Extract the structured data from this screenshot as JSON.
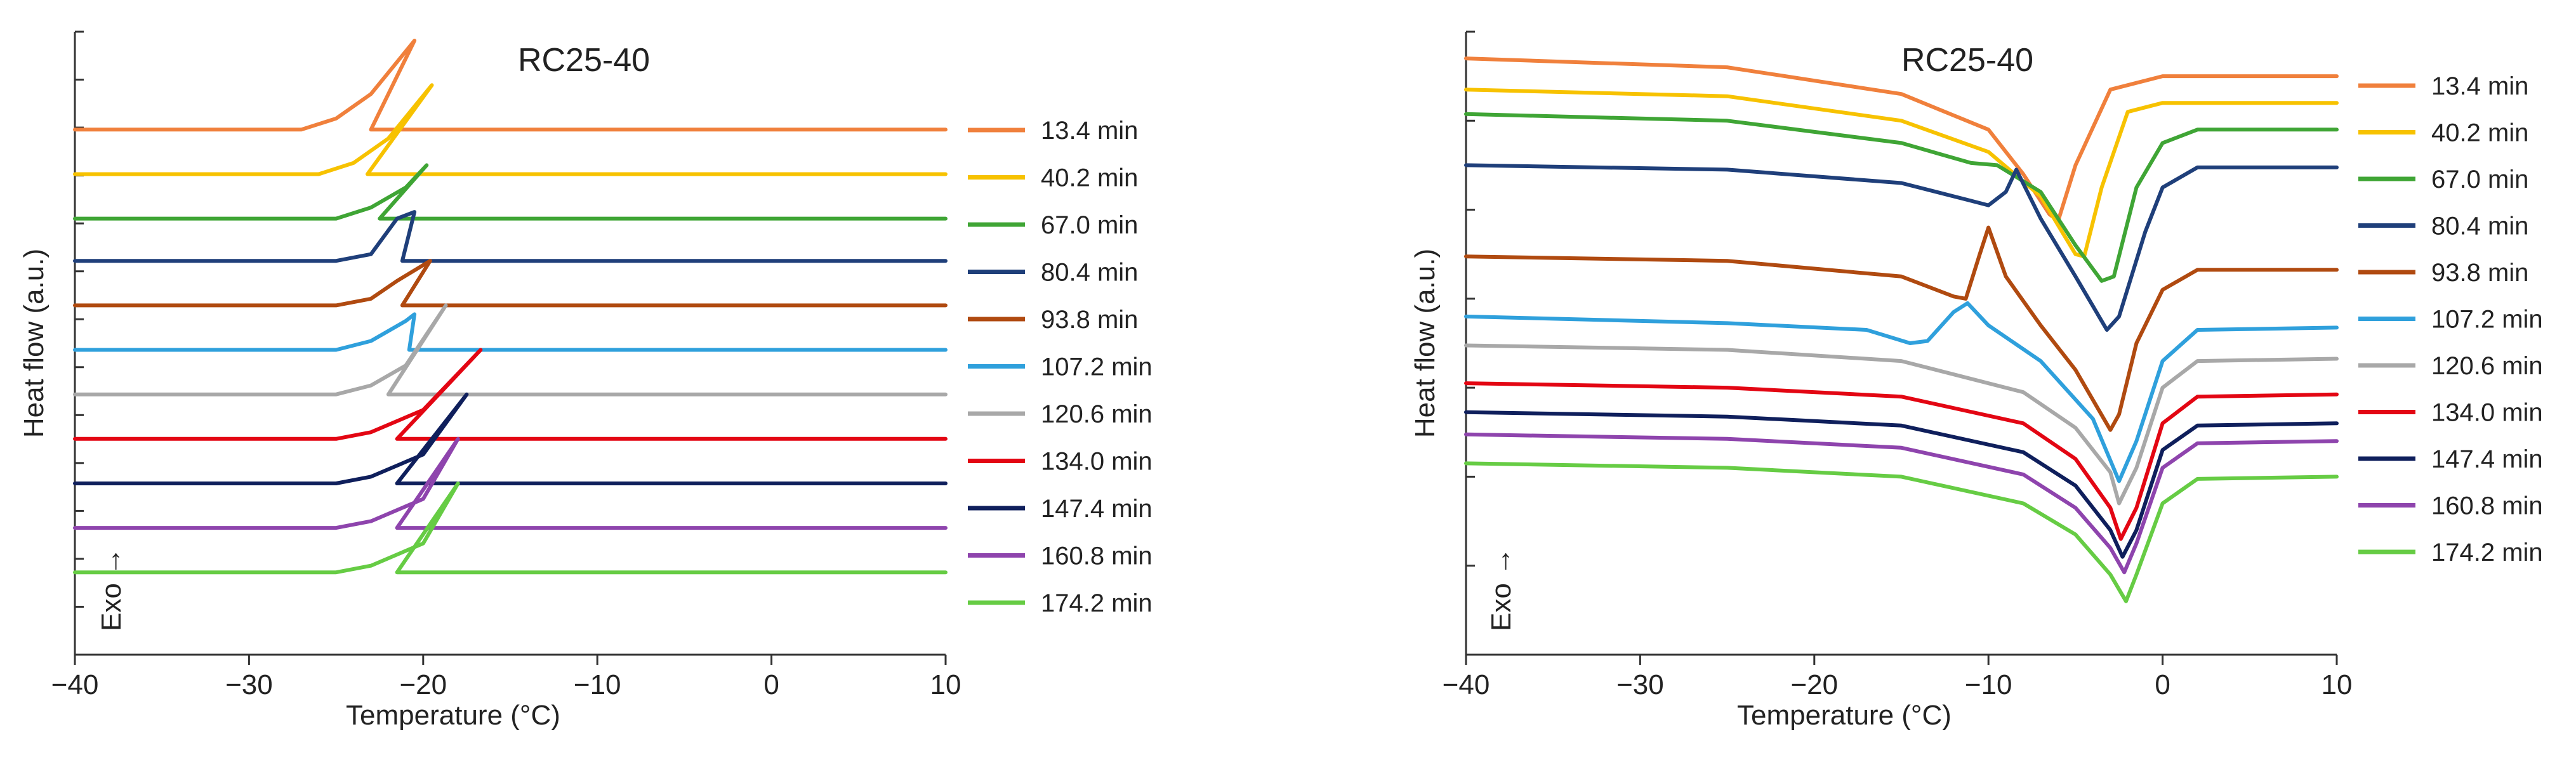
{
  "chart_data": [
    {
      "type": "line",
      "title": "RC25-40",
      "xlabel": "Temperature (°C)",
      "ylabel": "Heat flow  (a.u.)",
      "annotation": "Exo →",
      "xlim": [
        -40,
        10
      ],
      "ylim": [
        0,
        14
      ],
      "xticks": [
        -40,
        -30,
        -20,
        -10,
        0,
        10
      ],
      "xtick_labels": [
        "−40",
        "−30",
        "−20",
        "−10",
        "0",
        "10"
      ],
      "legend_position": "right",
      "series": [
        {
          "name": "13.4 min",
          "color": "#F0803C",
          "x": [
            -40,
            -27,
            -25,
            -23,
            -20.5,
            -23,
            -20.5,
            10
          ],
          "y": [
            11.8,
            11.8,
            12.05,
            12.6,
            13.8,
            11.8,
            11.8,
            11.8
          ]
        },
        {
          "name": "40.2 min",
          "color": "#F7C200",
          "x": [
            -40,
            -26,
            -24,
            -22,
            -19.5,
            -23.2,
            -21,
            10
          ],
          "y": [
            10.8,
            10.8,
            11.05,
            11.6,
            12.8,
            10.8,
            10.8,
            10.8
          ]
        },
        {
          "name": "67.0 min",
          "color": "#3FA535",
          "x": [
            -40,
            -25,
            -23,
            -21,
            -19.8,
            -22.5,
            -21,
            10
          ],
          "y": [
            9.8,
            9.8,
            10.05,
            10.5,
            11.0,
            9.8,
            9.8,
            9.8
          ]
        },
        {
          "name": "80.4 min",
          "color": "#1F3F7A",
          "x": [
            -40,
            -25,
            -23,
            -21.5,
            -20.5,
            -21.2,
            -20.5,
            10
          ],
          "y": [
            8.85,
            8.85,
            9.0,
            9.8,
            9.95,
            8.85,
            8.85,
            8.85
          ]
        },
        {
          "name": "93.8 min",
          "color": "#B04A10",
          "x": [
            -40,
            -25,
            -23,
            -21.5,
            -19.6,
            -21.2,
            -20,
            10
          ],
          "y": [
            7.85,
            7.85,
            8.0,
            8.4,
            8.85,
            7.85,
            7.85,
            7.85
          ]
        },
        {
          "name": "107.2 min",
          "color": "#2FA0DC",
          "x": [
            -40,
            -25,
            -23,
            -21,
            -20.5,
            -20.8,
            -20,
            10
          ],
          "y": [
            6.85,
            6.85,
            7.05,
            7.5,
            7.65,
            6.85,
            6.85,
            6.85
          ]
        },
        {
          "name": "120.6 min",
          "color": "#A8A8A8",
          "x": [
            -40,
            -25,
            -23,
            -21,
            -18.7,
            -22,
            -20,
            10
          ],
          "y": [
            5.85,
            5.85,
            6.05,
            6.5,
            7.85,
            5.85,
            5.85,
            5.85
          ]
        },
        {
          "name": "134.0 min",
          "color": "#E30613",
          "x": [
            -40,
            -25,
            -23,
            -20,
            -16.7,
            -21.5,
            -19.5,
            10
          ],
          "y": [
            4.85,
            4.85,
            5.0,
            5.5,
            6.85,
            4.85,
            4.85,
            4.85
          ]
        },
        {
          "name": "147.4 min",
          "color": "#0F1F5C",
          "x": [
            -40,
            -25,
            -23,
            -20,
            -17.5,
            -21.5,
            -19.5,
            10
          ],
          "y": [
            3.85,
            3.85,
            4.0,
            4.5,
            5.85,
            3.85,
            3.85,
            3.85
          ]
        },
        {
          "name": "160.8 min",
          "color": "#8E44AD",
          "x": [
            -40,
            -25,
            -23,
            -20,
            -18,
            -21.5,
            -19.5,
            10
          ],
          "y": [
            2.85,
            2.85,
            3.0,
            3.5,
            4.85,
            2.85,
            2.85,
            2.85
          ]
        },
        {
          "name": "174.2 min",
          "color": "#66CC44",
          "x": [
            -40,
            -25,
            -23,
            -20,
            -18,
            -21.5,
            -19.5,
            10
          ],
          "y": [
            1.85,
            1.85,
            2.0,
            2.5,
            3.85,
            1.85,
            1.85,
            1.85
          ]
        }
      ]
    },
    {
      "type": "line",
      "title": "RC25-40",
      "xlabel": "Temperature (°C)",
      "ylabel": "Heat flow  (a.u.)",
      "annotation": "Exo →",
      "xlim": [
        -40,
        10
      ],
      "ylim": [
        0,
        14
      ],
      "xticks": [
        -40,
        -30,
        -20,
        -10,
        0,
        10
      ],
      "xtick_labels": [
        "−40",
        "−30",
        "−20",
        "−10",
        "0",
        "10"
      ],
      "legend_position": "right",
      "series": [
        {
          "name": "13.4 min",
          "color": "#F0803C",
          "x": [
            -40,
            -25,
            -15,
            -10,
            -8,
            -6.5,
            -6,
            -5,
            -3,
            0,
            5,
            10
          ],
          "y": [
            13.4,
            13.2,
            12.6,
            11.8,
            10.8,
            9.9,
            9.75,
            11.0,
            12.7,
            13.0,
            13.0,
            13.0
          ]
        },
        {
          "name": "40.2 min",
          "color": "#F7C200",
          "x": [
            -40,
            -25,
            -15,
            -10,
            -7,
            -5,
            -4.5,
            -3.5,
            -2,
            0,
            5,
            10
          ],
          "y": [
            12.7,
            12.55,
            12.0,
            11.3,
            10.3,
            9.0,
            8.95,
            10.5,
            12.2,
            12.4,
            12.4,
            12.4
          ]
        },
        {
          "name": "67.0 min",
          "color": "#3FA535",
          "x": [
            -40,
            -25,
            -15,
            -11,
            -9.5,
            -7,
            -5,
            -3.5,
            -2.8,
            -1.5,
            0,
            2,
            10
          ],
          "y": [
            12.15,
            12.0,
            11.5,
            11.05,
            11.0,
            10.4,
            9.2,
            8.4,
            8.5,
            10.5,
            11.5,
            11.8,
            11.8
          ]
        },
        {
          "name": "80.4 min",
          "color": "#1F3F7A",
          "x": [
            -40,
            -25,
            -15,
            -11,
            -10,
            -9,
            -8.4,
            -7,
            -5,
            -3.2,
            -2.5,
            -1,
            0,
            2,
            10
          ],
          "y": [
            11.0,
            10.9,
            10.6,
            10.2,
            10.1,
            10.4,
            10.9,
            9.8,
            8.5,
            7.3,
            7.6,
            9.5,
            10.5,
            10.95,
            10.95
          ]
        },
        {
          "name": "93.8 min",
          "color": "#B04A10",
          "x": [
            -40,
            -25,
            -15,
            -12,
            -11.3,
            -10.5,
            -10,
            -9,
            -7,
            -5,
            -3,
            -2.5,
            -1.5,
            0,
            2,
            10
          ],
          "y": [
            8.95,
            8.85,
            8.5,
            8.05,
            8.0,
            9.0,
            9.6,
            8.5,
            7.4,
            6.4,
            5.05,
            5.4,
            7.0,
            8.2,
            8.65,
            8.65
          ]
        },
        {
          "name": "107.2 min",
          "color": "#2FA0DC",
          "x": [
            -40,
            -25,
            -17,
            -14.5,
            -13.5,
            -12,
            -11.2,
            -10,
            -7,
            -4,
            -2.5,
            -1.5,
            0,
            2,
            10
          ],
          "y": [
            7.6,
            7.45,
            7.3,
            7.0,
            7.05,
            7.7,
            7.9,
            7.4,
            6.6,
            5.3,
            3.9,
            4.8,
            6.6,
            7.3,
            7.35
          ]
        },
        {
          "name": "120.6 min",
          "color": "#A8A8A8",
          "x": [
            -40,
            -25,
            -15,
            -8,
            -5,
            -3,
            -2.5,
            -1.5,
            0,
            2,
            10
          ],
          "y": [
            6.95,
            6.85,
            6.6,
            5.9,
            5.1,
            4.1,
            3.4,
            4.2,
            6.0,
            6.6,
            6.65
          ]
        },
        {
          "name": "134.0 min",
          "color": "#E30613",
          "x": [
            -40,
            -25,
            -15,
            -8,
            -5,
            -3,
            -2.4,
            -1.5,
            0,
            2,
            10
          ],
          "y": [
            6.1,
            6.0,
            5.8,
            5.2,
            4.4,
            3.3,
            2.6,
            3.3,
            5.2,
            5.8,
            5.85
          ]
        },
        {
          "name": "147.4 min",
          "color": "#0F1F5C",
          "x": [
            -40,
            -25,
            -15,
            -8,
            -5,
            -3,
            -2.3,
            -1.5,
            0,
            2,
            10
          ],
          "y": [
            5.45,
            5.35,
            5.15,
            4.55,
            3.8,
            2.8,
            2.2,
            2.8,
            4.6,
            5.15,
            5.2
          ]
        },
        {
          "name": "160.8 min",
          "color": "#8E44AD",
          "x": [
            -40,
            -25,
            -15,
            -8,
            -5,
            -3,
            -2.2,
            -1.5,
            0,
            2,
            10
          ],
          "y": [
            4.95,
            4.85,
            4.65,
            4.05,
            3.3,
            2.4,
            1.85,
            2.5,
            4.2,
            4.75,
            4.8
          ]
        },
        {
          "name": "174.2 min",
          "color": "#66CC44",
          "x": [
            -40,
            -25,
            -15,
            -8,
            -5,
            -3,
            -2.1,
            -1.5,
            0,
            2,
            10
          ],
          "y": [
            4.3,
            4.2,
            4.0,
            3.4,
            2.7,
            1.8,
            1.2,
            1.8,
            3.4,
            3.95,
            4.0
          ]
        }
      ]
    }
  ]
}
